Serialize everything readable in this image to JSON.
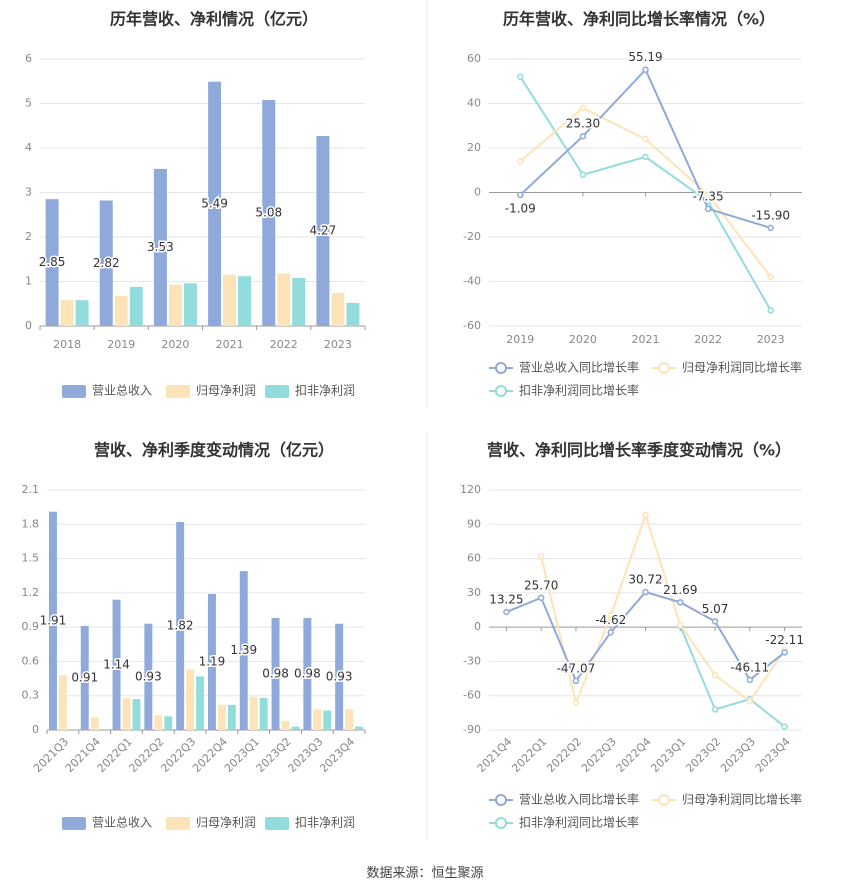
{
  "colors": {
    "revenue": "#8fa9da",
    "net_profit": "#fde3b8",
    "deducted_profit": "#93dcdc",
    "grid": "#e6e6e6",
    "axis": "#999999",
    "tick_text": "#888888",
    "title": "#333333",
    "label": "#333333"
  },
  "chart_data": [
    {
      "type": "bar",
      "title": "历年营收、净利情况（亿元）",
      "categories": [
        "2018",
        "2019",
        "2020",
        "2021",
        "2022",
        "2023"
      ],
      "ylim": [
        0,
        6
      ],
      "yticks": [
        0,
        1,
        2,
        3,
        4,
        5,
        6
      ],
      "series": [
        {
          "name": "营业总收入",
          "color_key": "revenue",
          "values": [
            2.85,
            2.82,
            3.53,
            5.49,
            5.08,
            4.27
          ],
          "labels": [
            "2.85",
            "2.82",
            "3.53",
            "5.49",
            "5.08",
            "4.27"
          ]
        },
        {
          "name": "归母净利润",
          "color_key": "net_profit",
          "values": [
            0.58,
            0.68,
            0.93,
            1.15,
            1.18,
            0.74
          ]
        },
        {
          "name": "扣非净利润",
          "color_key": "deducted_profit",
          "values": [
            0.58,
            0.88,
            0.96,
            1.12,
            1.08,
            0.52
          ]
        }
      ]
    },
    {
      "type": "line",
      "title": "历年营收、净利同比增长率情况（%）",
      "categories": [
        "2019",
        "2020",
        "2021",
        "2022",
        "2023"
      ],
      "ylim": [
        -60,
        60
      ],
      "yticks": [
        -60,
        -40,
        -20,
        0,
        20,
        40,
        60
      ],
      "series": [
        {
          "name": "营业总收入同比增长率",
          "color_key": "revenue",
          "values": [
            -1.09,
            25.3,
            55.19,
            -7.35,
            -15.9
          ],
          "labels": [
            "-1.09",
            "25.30",
            "55.19",
            "-7.35",
            "-15.90"
          ]
        },
        {
          "name": "归母净利润同比增长率",
          "color_key": "net_profit",
          "values": [
            14,
            38,
            24,
            -1,
            -38
          ]
        },
        {
          "name": "扣非净利润同比增长率",
          "color_key": "deducted_profit",
          "values": [
            52,
            8,
            16,
            -4,
            -53
          ]
        }
      ]
    },
    {
      "type": "bar",
      "title": "营收、净利季度变动情况（亿元）",
      "categories": [
        "2021Q3",
        "2021Q4",
        "2022Q1",
        "2022Q2",
        "2022Q3",
        "2022Q4",
        "2023Q1",
        "2023Q2",
        "2023Q3",
        "2023Q4"
      ],
      "ylim": [
        0,
        2.1
      ],
      "yticks": [
        0,
        0.3,
        0.6,
        0.9,
        1.2,
        1.5,
        1.8,
        2.1
      ],
      "ytick_labels": [
        "0",
        "0.3",
        "0.6",
        "0.9",
        "1.2",
        "1.5",
        "1.8",
        "2.1"
      ],
      "series": [
        {
          "name": "营业总收入",
          "color_key": "revenue",
          "values": [
            1.91,
            0.91,
            1.14,
            0.93,
            1.82,
            1.19,
            1.39,
            0.98,
            0.98,
            0.93
          ],
          "labels": [
            "1.91",
            "0.91",
            "1.14",
            "0.93",
            "1.82",
            "1.19",
            "1.39",
            "0.98",
            "0.98",
            "0.93"
          ]
        },
        {
          "name": "归母净利润",
          "color_key": "net_profit",
          "values": [
            0.48,
            0.11,
            0.28,
            0.13,
            0.53,
            0.22,
            0.29,
            0.08,
            0.18,
            0.18
          ]
        },
        {
          "name": "扣非净利润",
          "color_key": "deducted_profit",
          "values": [
            0.0,
            0.0,
            0.27,
            0.12,
            0.47,
            0.22,
            0.28,
            0.03,
            0.17,
            0.03
          ]
        }
      ]
    },
    {
      "type": "line",
      "title": "营收、净利同比增长率季度变动情况（%）",
      "categories": [
        "2021Q4",
        "2022Q1",
        "2022Q2",
        "2022Q3",
        "2022Q4",
        "2023Q1",
        "2023Q2",
        "2023Q3",
        "2023Q4"
      ],
      "ylim": [
        -90,
        120
      ],
      "yticks": [
        -90,
        -60,
        -30,
        0,
        30,
        60,
        90,
        120
      ],
      "series": [
        {
          "name": "营业总收入同比增长率",
          "color_key": "revenue",
          "values": [
            13.25,
            25.7,
            -47.07,
            -4.62,
            30.72,
            21.69,
            5.07,
            -46.11,
            -22.11
          ],
          "labels": [
            "13.25",
            "25.70",
            "-47.07",
            "-4.62",
            "30.72",
            "21.69",
            "5.07",
            "-46.11",
            "-22.11"
          ]
        },
        {
          "name": "归母净利润同比增长率",
          "color_key": "net_profit",
          "values": [
            null,
            62,
            -66,
            10,
            98,
            2,
            -42,
            -65,
            -20
          ]
        },
        {
          "name": "扣非净利润同比增长率",
          "color_key": "deducted_profit",
          "values": [
            null,
            null,
            null,
            null,
            null,
            1,
            -72,
            -63,
            -87
          ]
        }
      ]
    }
  ],
  "source_text": "数据来源：恒生聚源"
}
